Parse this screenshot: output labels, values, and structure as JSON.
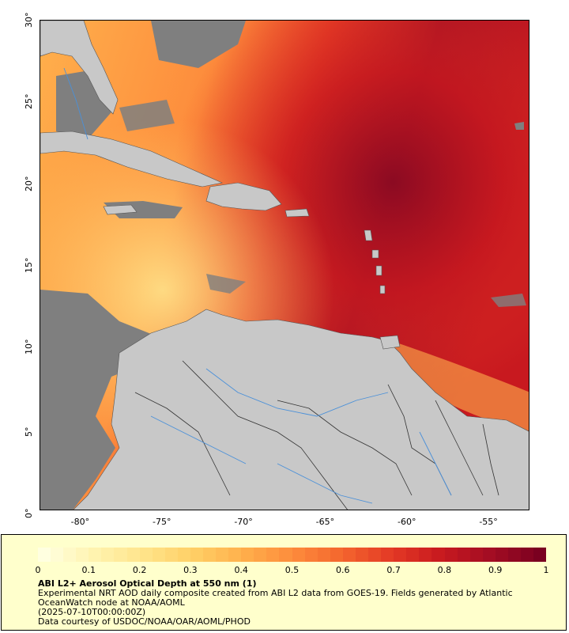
{
  "map": {
    "lon_ticks": [
      "-80°",
      "-75°",
      "-70°",
      "-65°",
      "-60°",
      "-55°"
    ],
    "lat_ticks": [
      "0°",
      "5°",
      "10°",
      "15°",
      "20°",
      "25°",
      "30°"
    ],
    "lon_range": [
      -82.5,
      -52.5
    ],
    "lat_range": [
      0,
      30
    ],
    "colors": {
      "land": "#c8c8c8",
      "no_data": "#7f7f7f",
      "rivers": "#4a90d9",
      "borders": "#555555"
    }
  },
  "legend": {
    "colorbar_ticks": [
      "0",
      "0.1",
      "0.2",
      "0.3",
      "0.4",
      "0.5",
      "0.6",
      "0.7",
      "0.8",
      "0.9",
      "1"
    ],
    "colors": [
      "#ffffe0",
      "#fff3b0",
      "#ffe48a",
      "#ffcf66",
      "#ffb04c",
      "#fd8c3c",
      "#f4662e",
      "#e43a25",
      "#c8191f",
      "#a30d23",
      "#7a0020"
    ],
    "title": "ABI L2+ Aerosol Optical Depth at 550 nm (1)",
    "line1": "Experimental NRT AOD daily composite created from ABI L2 data from GOES-19. Fields generated by Atlantic",
    "line2": "OceanWatch node at NOAA/AOML",
    "line3": "(2025-07-10T00:00:00Z)",
    "line4": "Data courtesy of USDOC/NOAA/OAR/AOML/PHOD"
  }
}
